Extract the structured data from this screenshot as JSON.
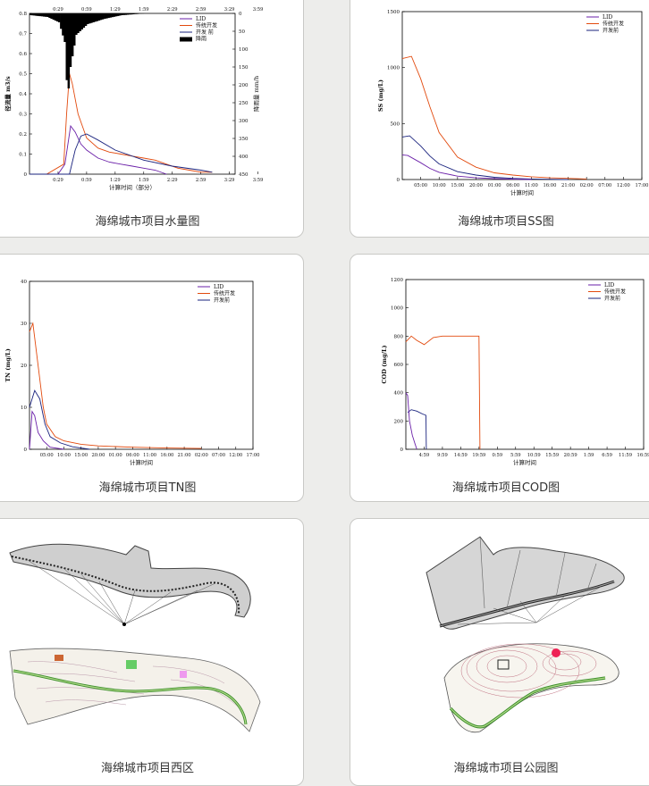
{
  "cards": [
    {
      "caption": "海绵城市项目水量图"
    },
    {
      "caption": "海绵城市项目SS图"
    },
    {
      "caption": "海绵城市项目TN图"
    },
    {
      "caption": "海绵城市项目COD图"
    },
    {
      "caption": "海绵城市项目西区"
    },
    {
      "caption": "海绵城市项目公园图"
    }
  ],
  "colors": {
    "LID": "#6a1fa8",
    "trad": "#e24a0e",
    "pre": "#1a237e",
    "rain": "#000000",
    "page_bg": "#ededeb"
  },
  "chart_data": [
    {
      "type": "line",
      "xlabel": "计算时间（部分）",
      "ylabel": "径流量 m3/s",
      "ylabel_right": "降雨量 mm/h",
      "xticks": [
        "0:29",
        "0:59",
        "1:29",
        "1:59",
        "2:29",
        "2:59",
        "3:29",
        "3:59"
      ],
      "yticks": [
        0.0,
        0.1,
        0.2,
        0.3,
        0.4,
        0.5,
        0.6,
        0.7,
        0.8
      ],
      "ylim": [
        0,
        0.8
      ],
      "yticks_right": [
        0,
        50,
        100,
        150,
        200,
        250,
        300,
        350,
        400,
        450
      ],
      "ylim_right": [
        0,
        450
      ],
      "legend": [
        "LID",
        "传统开发",
        "开发 前",
        "降雨"
      ],
      "series": [
        {
          "name": "LID",
          "x": [
            0,
            0.5,
            0.62,
            0.72,
            0.8,
            0.9,
            1.0,
            1.2,
            1.4,
            1.6,
            1.8,
            2.0,
            2.2,
            2.4
          ],
          "y": [
            0,
            0,
            0.05,
            0.24,
            0.21,
            0.15,
            0.12,
            0.08,
            0.06,
            0.05,
            0.04,
            0.03,
            0.02,
            0.0
          ]
        },
        {
          "name": "传统开发",
          "x": [
            0,
            0.3,
            0.6,
            0.65,
            0.7,
            0.75,
            0.85,
            1.0,
            1.2,
            1.4,
            1.6,
            1.8,
            2.0,
            2.2,
            2.4,
            2.6,
            2.8,
            3.0,
            3.2
          ],
          "y": [
            0,
            0,
            0.05,
            0.3,
            0.5,
            0.45,
            0.3,
            0.18,
            0.13,
            0.11,
            0.1,
            0.09,
            0.08,
            0.07,
            0.05,
            0.03,
            0.02,
            0.01,
            0.01
          ]
        },
        {
          "name": "开发 前",
          "x": [
            0,
            0.7,
            0.8,
            0.9,
            1.0,
            1.2,
            1.5,
            2.0,
            2.5,
            3.0,
            3.2
          ],
          "y": [
            0,
            0,
            0.12,
            0.19,
            0.2,
            0.17,
            0.12,
            0.07,
            0.04,
            0.02,
            0.01
          ]
        },
        {
          "name": "降雨",
          "x": [
            0,
            0.3,
            0.5,
            0.6,
            0.65,
            0.7,
            0.8,
            1.0,
            1.3,
            1.6,
            2.0
          ],
          "y": [
            5,
            10,
            25,
            80,
            240,
            150,
            60,
            30,
            15,
            5,
            0
          ]
        }
      ]
    },
    {
      "type": "line",
      "ylabel": "SS (mg/L)",
      "xlabel": "计算时间",
      "xticks": [
        "05:00",
        "10:00",
        "15:00",
        "20:00",
        "01:00",
        "06:00",
        "11:00",
        "16:00",
        "21:00",
        "02:00",
        "07:00",
        "12:00",
        "17:00"
      ],
      "yticks": [
        0,
        500,
        1000,
        1500
      ],
      "ylim": [
        0,
        1500
      ],
      "legend": [
        "LID",
        "传统开发",
        "开发前"
      ],
      "series": [
        {
          "name": "传统开发",
          "x": [
            0,
            0.5,
            1,
            1.5,
            2,
            3,
            4,
            5,
            6,
            7,
            8,
            9,
            10
          ],
          "y": [
            1080,
            1100,
            900,
            650,
            420,
            200,
            110,
            60,
            40,
            25,
            15,
            10,
            5
          ]
        },
        {
          "name": "开发前",
          "x": [
            0,
            0.4,
            1,
            1.5,
            2,
            3,
            4,
            5,
            6,
            7,
            8,
            9
          ],
          "y": [
            380,
            390,
            300,
            210,
            140,
            70,
            40,
            20,
            10,
            5,
            2,
            0
          ]
        },
        {
          "name": "LID",
          "x": [
            0,
            0.3,
            1,
            1.5,
            2,
            3,
            4,
            5,
            6,
            7
          ],
          "y": [
            220,
            215,
            150,
            100,
            65,
            30,
            15,
            8,
            3,
            0
          ]
        }
      ]
    },
    {
      "type": "line",
      "ylabel": "TN (mg/L)",
      "xlabel": "计算时间",
      "xticks": [
        "05:00",
        "10:00",
        "15:00",
        "20:00",
        "01:00",
        "06:00",
        "11:00",
        "16:00",
        "21:00",
        "02:00",
        "07:00",
        "12:00",
        "17:00"
      ],
      "yticks": [
        0,
        10,
        20,
        30,
        40
      ],
      "ylim": [
        0,
        40
      ],
      "legend": [
        "LID",
        "传统开发",
        "开发前"
      ],
      "series": [
        {
          "name": "传统开发",
          "x": [
            0,
            0.2,
            0.5,
            0.8,
            1,
            1.5,
            2,
            3,
            4,
            6,
            8,
            10
          ],
          "y": [
            28,
            30,
            20,
            10,
            6,
            3,
            2,
            1.2,
            0.8,
            0.5,
            0.3,
            0.2
          ]
        },
        {
          "name": "开发前",
          "x": [
            0,
            0.3,
            0.6,
            0.9,
            1.2,
            1.8,
            2.5,
            3.5
          ],
          "y": [
            10,
            14,
            12,
            6,
            3,
            1.5,
            0.6,
            0
          ]
        },
        {
          "name": "LID",
          "x": [
            0,
            0.15,
            0.3,
            0.5,
            0.8,
            1.2,
            2
          ],
          "y": [
            0,
            9,
            8,
            4,
            2,
            0.5,
            0
          ]
        }
      ]
    },
    {
      "type": "line",
      "ylabel": "COD (mg/L)",
      "xlabel": "计算时间",
      "xticks": [
        "4:59",
        "9:59",
        "14:59",
        "19:59",
        "0:59",
        "5:59",
        "10:59",
        "15:59",
        "20:59",
        "1:59",
        "6:59",
        "11:59",
        "16:59"
      ],
      "yticks": [
        0,
        200,
        400,
        600,
        800,
        1000,
        1200
      ],
      "ylim": [
        0,
        1200
      ],
      "legend": [
        "LID",
        "传统开发",
        "开发前"
      ],
      "series": [
        {
          "name": "传统开发",
          "x": [
            0,
            0.3,
            0.6,
            1,
            1.5,
            2,
            2.5,
            3,
            3.5,
            4,
            4.05
          ],
          "y": [
            760,
            800,
            770,
            740,
            790,
            800,
            800,
            800,
            800,
            800,
            0
          ]
        },
        {
          "name": "开发前",
          "x": [
            0.1,
            0.3,
            0.6,
            0.9,
            1.1,
            1.12
          ],
          "y": [
            260,
            280,
            270,
            250,
            240,
            0
          ]
        },
        {
          "name": "LID",
          "x": [
            0,
            0.1,
            0.2,
            0.35,
            0.5,
            0.6
          ],
          "y": [
            400,
            380,
            200,
            100,
            40,
            0
          ]
        }
      ]
    }
  ]
}
